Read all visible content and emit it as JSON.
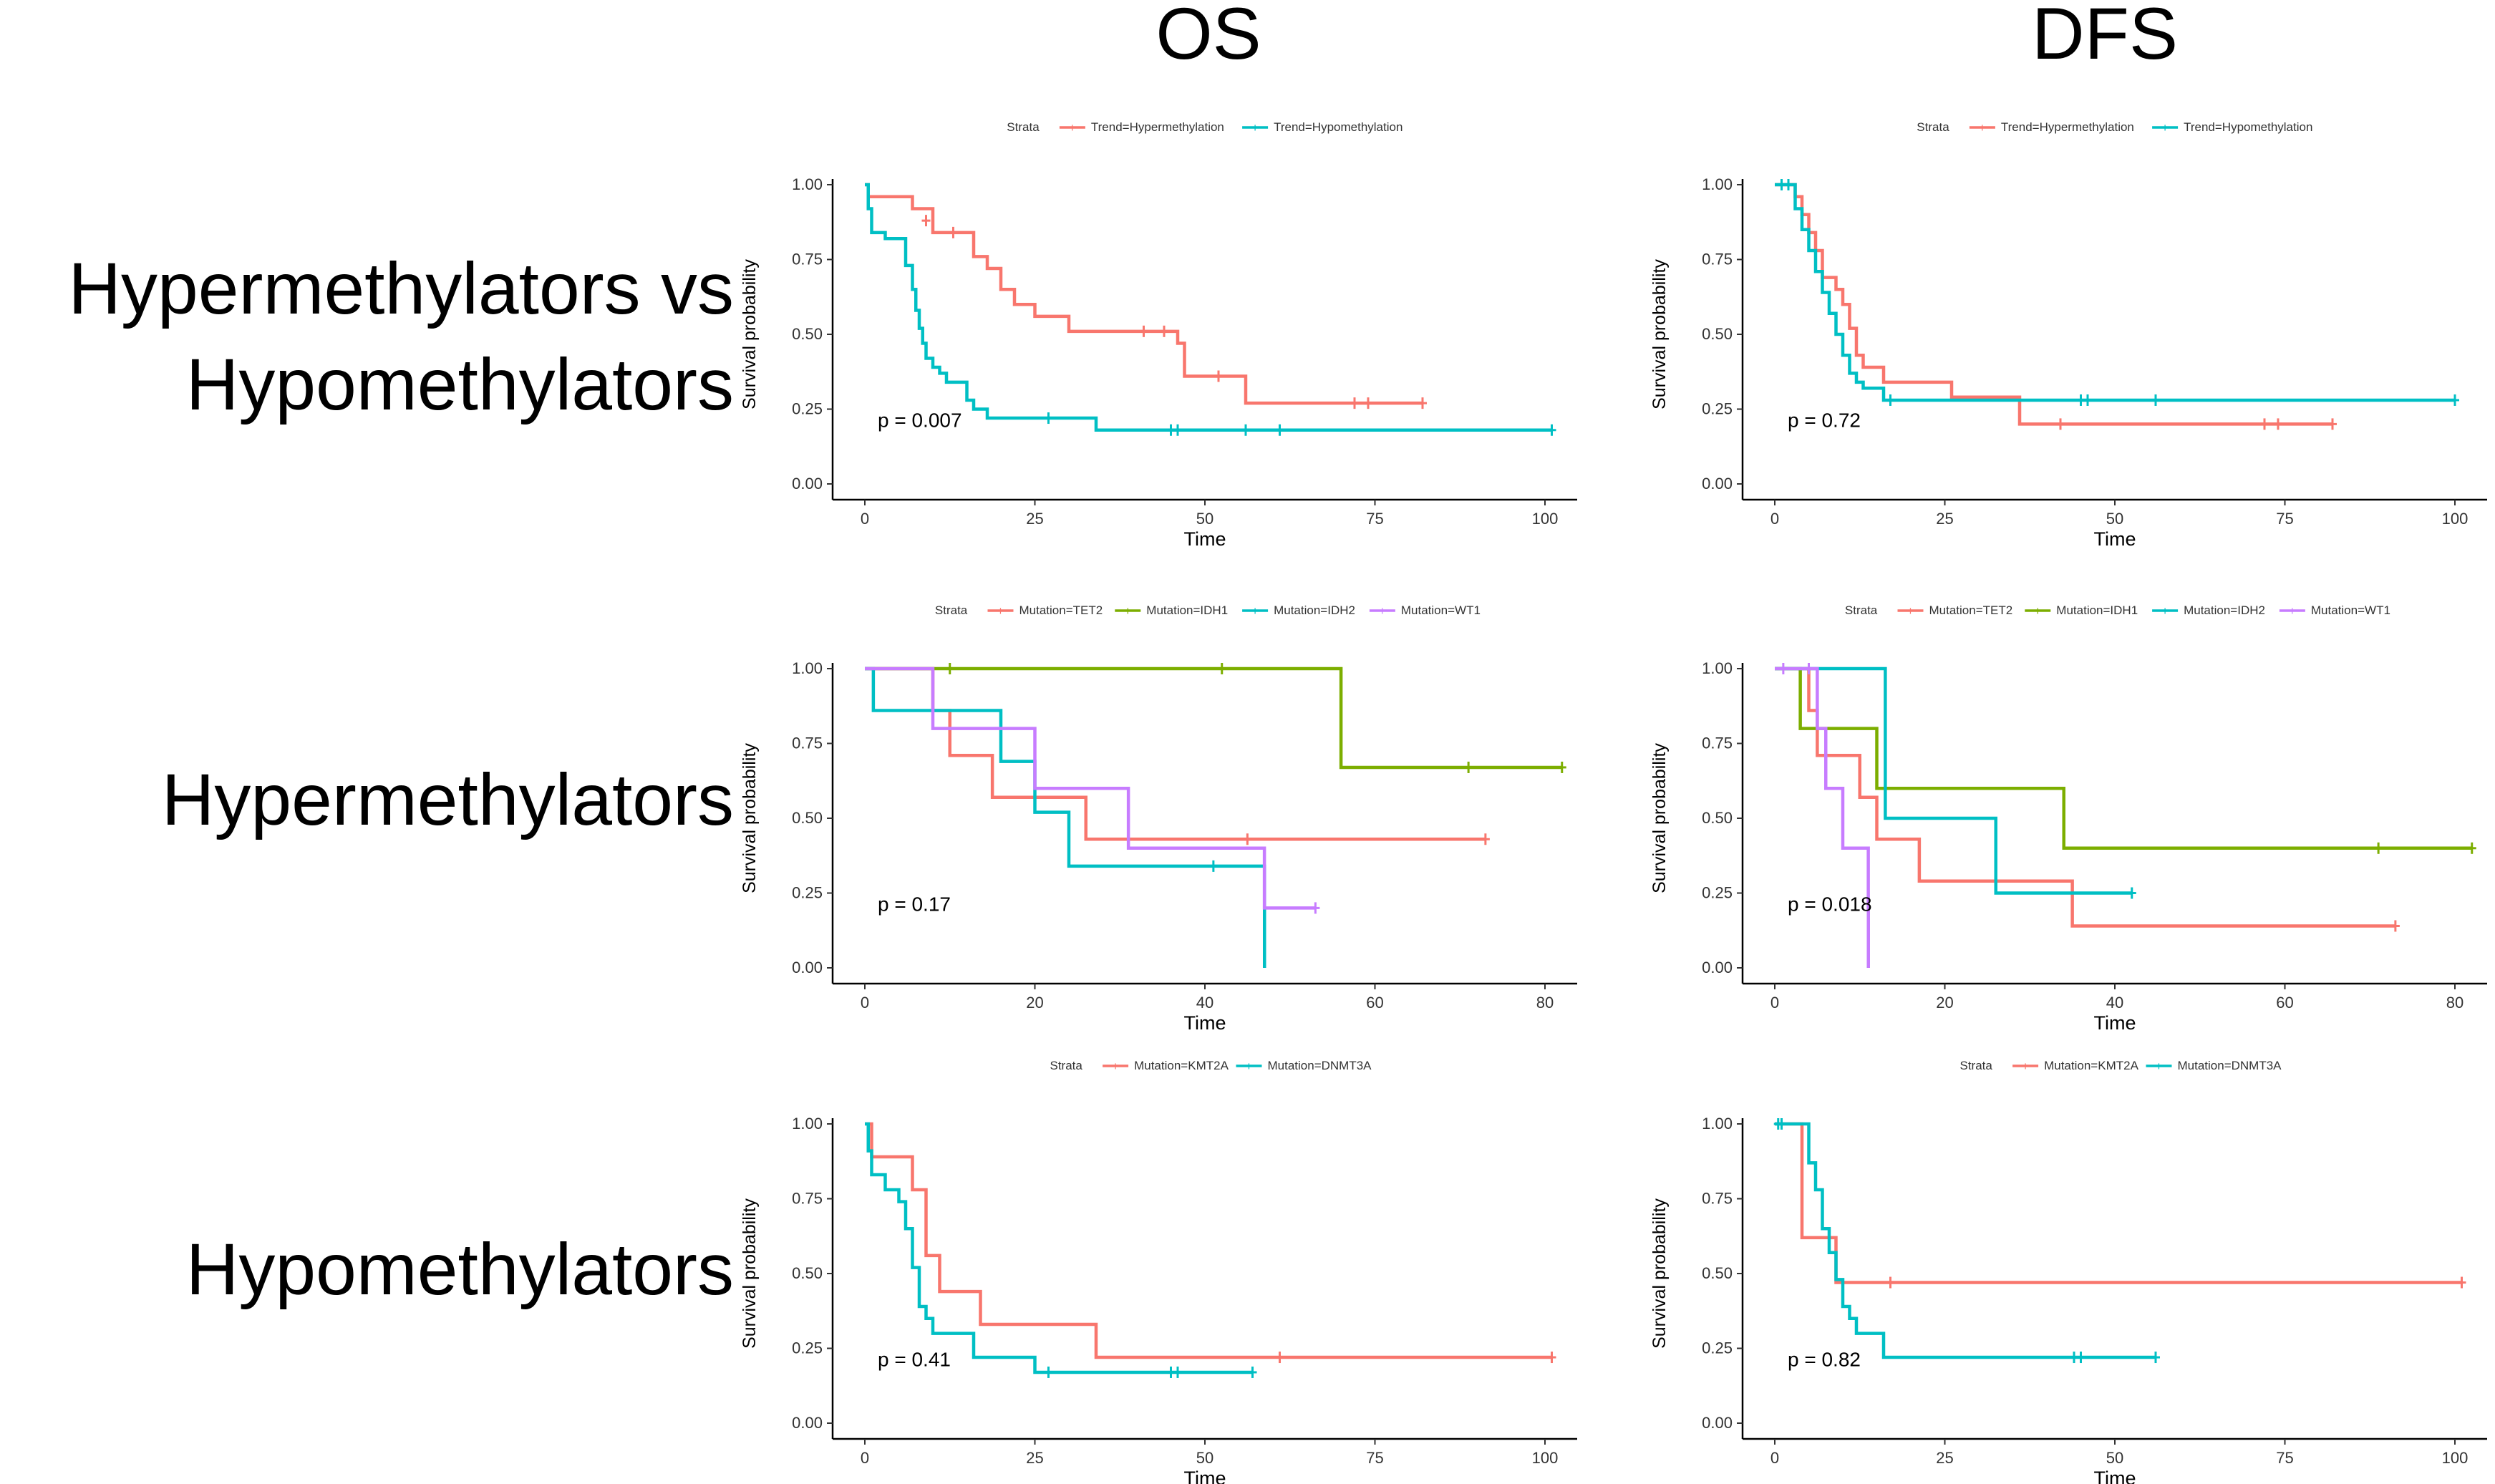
{
  "column_titles": [
    "OS",
    "DFS"
  ],
  "row_labels": [
    [
      "Hypermethylators vs",
      "Hypomethylators"
    ],
    [
      "Hypermethylators"
    ],
    [
      "Hypomethylators"
    ]
  ],
  "chart_data": [
    {
      "type": "line",
      "subtype": "kaplan-meier",
      "row": 0,
      "col": 0,
      "legend_title": "Strata",
      "xlabel": "Time",
      "ylabel": "Survival probability",
      "xlim": [
        0,
        100
      ],
      "ylim": [
        0,
        1
      ],
      "x_ticks": [
        0,
        25,
        50,
        75,
        100
      ],
      "y_ticks": [
        "0.00",
        "0.25",
        "0.50",
        "0.75",
        "1.00"
      ],
      "pvalue": "p = 0.007",
      "series": [
        {
          "name": "Trend=Hypermethylation",
          "color": "#F8766D",
          "x": [
            0,
            0.5,
            7,
            10,
            16,
            18,
            20,
            22,
            25,
            30,
            46,
            47,
            56,
            82
          ],
          "y": [
            1.0,
            0.96,
            0.92,
            0.84,
            0.76,
            0.72,
            0.65,
            0.6,
            0.56,
            0.51,
            0.47,
            0.36,
            0.27,
            0.27
          ],
          "censor_x": [
            9,
            13,
            41,
            44,
            52,
            72,
            74,
            82
          ],
          "censor_y": [
            0.88,
            0.84,
            0.51,
            0.51,
            0.36,
            0.27,
            0.27,
            0.27
          ]
        },
        {
          "name": "Trend=Hypomethylation",
          "color": "#00BFC4",
          "x": [
            0,
            0.5,
            1,
            3,
            6,
            7,
            7.5,
            8,
            8.5,
            9,
            10,
            11,
            12,
            15,
            16,
            18,
            34,
            101
          ],
          "y": [
            1.0,
            0.92,
            0.84,
            0.82,
            0.73,
            0.65,
            0.58,
            0.52,
            0.47,
            0.42,
            0.39,
            0.37,
            0.34,
            0.28,
            0.25,
            0.22,
            0.18,
            0.18
          ],
          "censor_x": [
            27,
            45,
            46,
            56,
            61,
            101
          ],
          "censor_y": [
            0.22,
            0.18,
            0.18,
            0.18,
            0.18,
            0.18
          ]
        }
      ]
    },
    {
      "type": "line",
      "subtype": "kaplan-meier",
      "row": 0,
      "col": 1,
      "legend_title": "Strata",
      "xlabel": "Time",
      "ylabel": "Survival probability",
      "xlim": [
        0,
        100
      ],
      "ylim": [
        0,
        1
      ],
      "x_ticks": [
        0,
        25,
        50,
        75,
        100
      ],
      "y_ticks": [
        "0.00",
        "0.25",
        "0.50",
        "0.75",
        "1.00"
      ],
      "pvalue": "p = 0.72",
      "series": [
        {
          "name": "Trend=Hypermethylation",
          "color": "#F8766D",
          "x": [
            0,
            3,
            4,
            5,
            6,
            7,
            9,
            10,
            11,
            12,
            13,
            16,
            26,
            36,
            82
          ],
          "y": [
            1.0,
            0.96,
            0.9,
            0.84,
            0.78,
            0.69,
            0.65,
            0.6,
            0.52,
            0.43,
            0.39,
            0.34,
            0.29,
            0.2,
            0.2
          ],
          "censor_x": [
            42,
            72,
            74,
            82
          ],
          "censor_y": [
            0.2,
            0.2,
            0.2,
            0.2
          ]
        },
        {
          "name": "Trend=Hypomethylation",
          "color": "#00BFC4",
          "x": [
            0,
            3,
            4,
            5,
            6,
            7,
            8,
            9,
            10,
            11,
            12,
            13,
            16,
            100
          ],
          "y": [
            1.0,
            0.92,
            0.85,
            0.78,
            0.71,
            0.64,
            0.57,
            0.5,
            0.43,
            0.37,
            0.34,
            0.32,
            0.28,
            0.28
          ],
          "censor_x": [
            1,
            2,
            17,
            45,
            46,
            56,
            100
          ],
          "censor_y": [
            1.0,
            1.0,
            0.28,
            0.28,
            0.28,
            0.28,
            0.28
          ]
        }
      ]
    },
    {
      "type": "line",
      "subtype": "kaplan-meier",
      "row": 1,
      "col": 0,
      "legend_title": "Strata",
      "xlabel": "Time",
      "ylabel": "Survival probability",
      "xlim": [
        0,
        80
      ],
      "ylim": [
        0,
        1
      ],
      "x_ticks": [
        0,
        20,
        40,
        60,
        80
      ],
      "y_ticks": [
        "0.00",
        "0.25",
        "0.50",
        "0.75",
        "1.00"
      ],
      "pvalue": "p = 0.17",
      "series": [
        {
          "name": "Mutation=TET2",
          "color": "#F8766D",
          "x": [
            0,
            7,
            8,
            10,
            15,
            20,
            26,
            73
          ],
          "y": [
            1.0,
            1.0,
            0.86,
            0.71,
            0.57,
            0.57,
            0.43,
            0.43
          ],
          "censor_x": [
            31,
            45,
            73
          ],
          "censor_y": [
            0.43,
            0.43,
            0.43
          ]
        },
        {
          "name": "Mutation=IDH1",
          "color": "#7CAE00",
          "x": [
            0,
            56,
            56.01,
            82
          ],
          "y": [
            1.0,
            1.0,
            0.67,
            0.67
          ],
          "censor_x": [
            10,
            42,
            71,
            82
          ],
          "censor_y": [
            1.0,
            1.0,
            0.67,
            0.67
          ]
        },
        {
          "name": "Mutation=IDH2",
          "color": "#00BFC4",
          "x": [
            0,
            1,
            15,
            16,
            19,
            20,
            24,
            47,
            47.01
          ],
          "y": [
            1.0,
            0.86,
            0.86,
            0.69,
            0.69,
            0.52,
            0.34,
            0.34,
            0.0
          ],
          "censor_x": [
            41
          ],
          "censor_y": [
            0.34
          ]
        },
        {
          "name": "Mutation=WT1",
          "color": "#C77CFF",
          "x": [
            0,
            7,
            8,
            19,
            20,
            30,
            31,
            46,
            47,
            53
          ],
          "y": [
            1.0,
            1.0,
            0.8,
            0.8,
            0.6,
            0.6,
            0.4,
            0.4,
            0.2,
            0.2
          ],
          "censor_x": [
            53
          ],
          "censor_y": [
            0.2
          ]
        }
      ]
    },
    {
      "type": "line",
      "subtype": "kaplan-meier",
      "row": 1,
      "col": 1,
      "legend_title": "Strata",
      "xlabel": "Time",
      "ylabel": "Survival probability",
      "xlim": [
        0,
        80
      ],
      "ylim": [
        0,
        1
      ],
      "x_ticks": [
        0,
        20,
        40,
        60,
        80
      ],
      "y_ticks": [
        "0.00",
        "0.25",
        "0.50",
        "0.75",
        "1.00"
      ],
      "pvalue": "p = 0.018",
      "series": [
        {
          "name": "Mutation=TET2",
          "color": "#F8766D",
          "x": [
            0,
            4,
            5,
            8,
            10,
            12,
            17,
            35,
            73
          ],
          "y": [
            1.0,
            0.86,
            0.71,
            0.71,
            0.57,
            0.43,
            0.29,
            0.14,
            0.14
          ],
          "censor_x": [
            73
          ],
          "censor_y": [
            0.14
          ]
        },
        {
          "name": "Mutation=IDH1",
          "color": "#7CAE00",
          "x": [
            0,
            3,
            7,
            12,
            34,
            82
          ],
          "y": [
            1.0,
            0.8,
            0.8,
            0.6,
            0.4,
            0.4
          ],
          "censor_x": [
            71,
            82
          ],
          "censor_y": [
            0.4,
            0.4
          ]
        },
        {
          "name": "Mutation=IDH2",
          "color": "#00BFC4",
          "x": [
            0,
            12,
            13,
            26,
            42
          ],
          "y": [
            1.0,
            1.0,
            0.5,
            0.25,
            0.25
          ],
          "censor_x": [
            42
          ],
          "censor_y": [
            0.25
          ]
        },
        {
          "name": "Mutation=WT1",
          "color": "#C77CFF",
          "x": [
            0,
            4,
            5,
            6,
            8,
            11,
            11.01
          ],
          "y": [
            1.0,
            1.0,
            0.8,
            0.6,
            0.4,
            0.2,
            0.0
          ],
          "censor_x": [
            1,
            4
          ],
          "censor_y": [
            1.0,
            1.0
          ]
        }
      ]
    },
    {
      "type": "line",
      "subtype": "kaplan-meier",
      "row": 2,
      "col": 0,
      "legend_title": "Strata",
      "xlabel": "Time",
      "ylabel": "Survival probability",
      "xlim": [
        0,
        100
      ],
      "ylim": [
        0,
        1
      ],
      "x_ticks": [
        0,
        25,
        50,
        75,
        100
      ],
      "y_ticks": [
        "0.00",
        "0.25",
        "0.50",
        "0.75",
        "1.00"
      ],
      "pvalue": "p = 0.41",
      "series": [
        {
          "name": "Mutation=KMT2A",
          "color": "#F8766D",
          "x": [
            0,
            1,
            5,
            7,
            9,
            11,
            17,
            34,
            101
          ],
          "y": [
            1.0,
            0.89,
            0.89,
            0.78,
            0.56,
            0.44,
            0.33,
            0.22,
            0.22
          ],
          "censor_x": [
            61,
            101
          ],
          "censor_y": [
            0.22,
            0.22
          ]
        },
        {
          "name": "Mutation=DNMT3A",
          "color": "#00BFC4",
          "x": [
            0,
            0.5,
            1,
            3,
            5,
            6,
            7,
            8,
            9,
            10,
            16,
            25,
            57
          ],
          "y": [
            1.0,
            0.91,
            0.83,
            0.78,
            0.74,
            0.65,
            0.52,
            0.39,
            0.35,
            0.3,
            0.22,
            0.17,
            0.17
          ],
          "censor_x": [
            27,
            45,
            46,
            57
          ],
          "censor_y": [
            0.17,
            0.17,
            0.17,
            0.17
          ]
        }
      ]
    },
    {
      "type": "line",
      "subtype": "kaplan-meier",
      "row": 2,
      "col": 1,
      "legend_title": "Strata",
      "xlabel": "Time",
      "ylabel": "Survival probability",
      "xlim": [
        0,
        100
      ],
      "ylim": [
        0,
        1
      ],
      "x_ticks": [
        0,
        25,
        50,
        75,
        100
      ],
      "y_ticks": [
        "0.00",
        "0.25",
        "0.50",
        "0.75",
        "1.00"
      ],
      "pvalue": "p = 0.82",
      "series": [
        {
          "name": "Mutation=KMT2A",
          "color": "#F8766D",
          "x": [
            0,
            3,
            4,
            8,
            9,
            101
          ],
          "y": [
            1.0,
            1.0,
            0.62,
            0.62,
            0.47,
            0.47
          ],
          "censor_x": [
            17,
            101
          ],
          "censor_y": [
            0.47,
            0.47
          ]
        },
        {
          "name": "Mutation=DNMT3A",
          "color": "#00BFC4",
          "x": [
            0,
            5,
            6,
            7,
            8,
            9,
            10,
            11,
            12,
            16,
            56
          ],
          "y": [
            1.0,
            0.87,
            0.78,
            0.65,
            0.57,
            0.48,
            0.39,
            0.35,
            0.3,
            0.22,
            0.22
          ],
          "censor_x": [
            0.5,
            1,
            44,
            45,
            56
          ],
          "censor_y": [
            1.0,
            1.0,
            0.22,
            0.22,
            0.22
          ]
        }
      ]
    }
  ]
}
